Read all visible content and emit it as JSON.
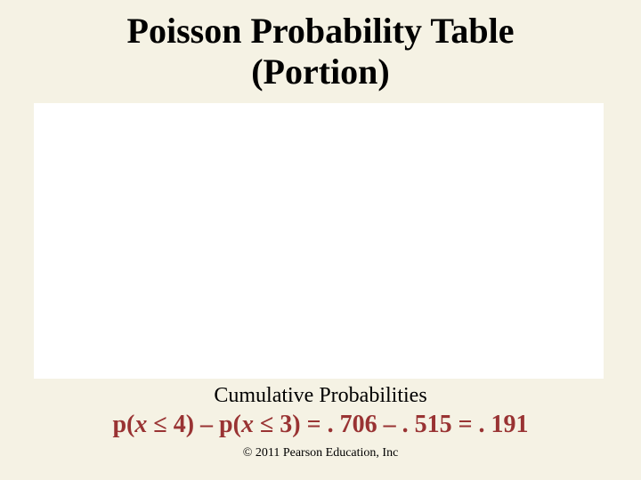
{
  "title_line1": "Poisson Probability Table",
  "title_line2": "(Portion)",
  "subtitle": "Cumulative Probabilities",
  "equation": {
    "p_open1": "p(",
    "x1": "x",
    "le4": " ≤ 4) – p(",
    "x2": "x",
    "le3": " ≤ 3) = . 706 – . 515 = . 191"
  },
  "copyright": "© 2011 Pearson Education, Inc",
  "colors": {
    "background": "#f5f2e4",
    "white_region": "#ffffff",
    "text": "#000000",
    "equation": "#993333"
  }
}
